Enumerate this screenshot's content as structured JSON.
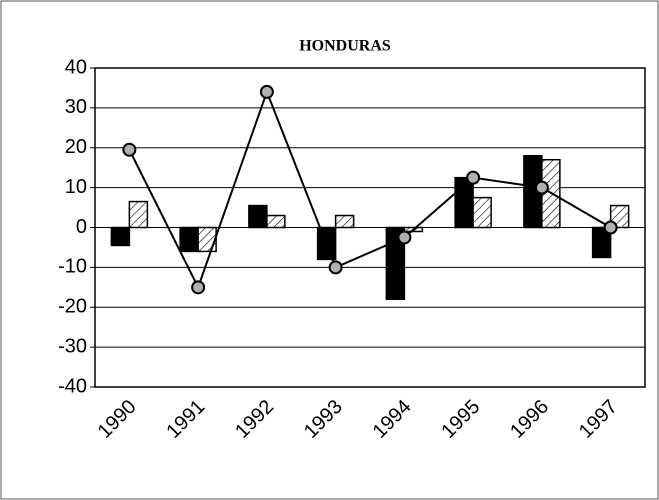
{
  "chart_data": {
    "type": "bar_line",
    "title": "HONDURAS",
    "categories": [
      "1990",
      "1991",
      "1992",
      "1993",
      "1994",
      "1995",
      "1996",
      "1997"
    ],
    "series": [
      {
        "type": "bar",
        "color": "#000000",
        "pattern": "solid",
        "values": [
          -4.5,
          -6,
          5.5,
          -8,
          -18,
          12.5,
          18,
          -7.5
        ]
      },
      {
        "type": "bar",
        "color": "#000000",
        "pattern": "hatched",
        "values": [
          6.5,
          -6,
          3,
          3,
          -1,
          7.5,
          17,
          5.5
        ]
      },
      {
        "type": "line",
        "color": "#000000",
        "marker_color": "#b0b0b0",
        "values": [
          19.5,
          -15,
          34,
          -10,
          -2.5,
          12.5,
          10,
          0
        ]
      }
    ],
    "ylim": [
      -40,
      40
    ],
    "yticks": [
      -40,
      -30,
      -20,
      -10,
      0,
      10,
      20,
      30,
      40
    ],
    "grid": true
  }
}
